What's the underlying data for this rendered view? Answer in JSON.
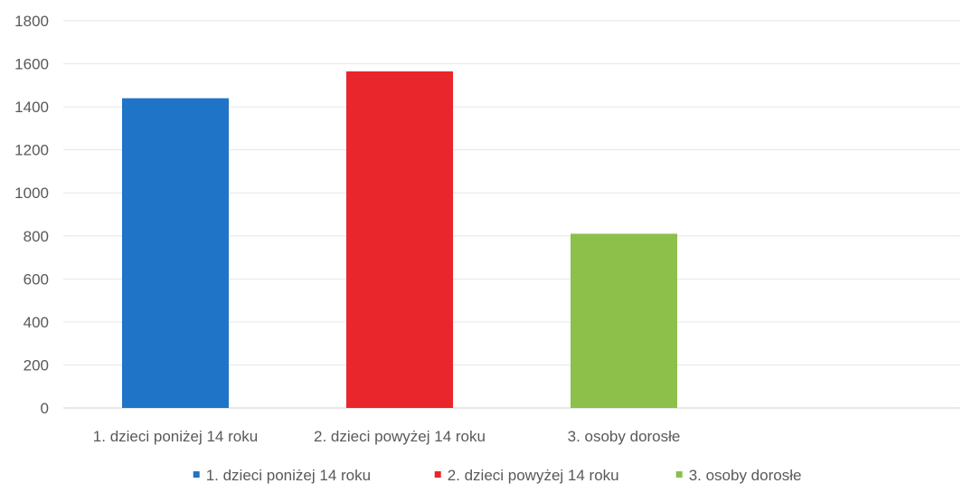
{
  "chart_data": {
    "type": "bar",
    "title": "",
    "xlabel": "",
    "ylabel": "",
    "ylim": [
      0,
      1800
    ],
    "yticks": [
      0,
      200,
      400,
      600,
      800,
      1000,
      1200,
      1400,
      1600,
      1800
    ],
    "grid": true,
    "legend_position": "bottom",
    "categories": [
      "1. dzieci poniżej 14 roku",
      "2. dzieci powyżej 14 roku",
      "3. osoby dorosłe",
      ""
    ],
    "series": [
      {
        "name": "1. dzieci poniżej 14 roku",
        "color": "#1f74c8",
        "values": [
          1440,
          null,
          null,
          null
        ]
      },
      {
        "name": "2. dzieci powyżej 14 roku",
        "color": "#e8262b",
        "values": [
          null,
          1565,
          null,
          null
        ]
      },
      {
        "name": "3. osoby dorosłe",
        "color": "#8cc04a",
        "values": [
          null,
          null,
          810,
          null
        ]
      }
    ]
  }
}
